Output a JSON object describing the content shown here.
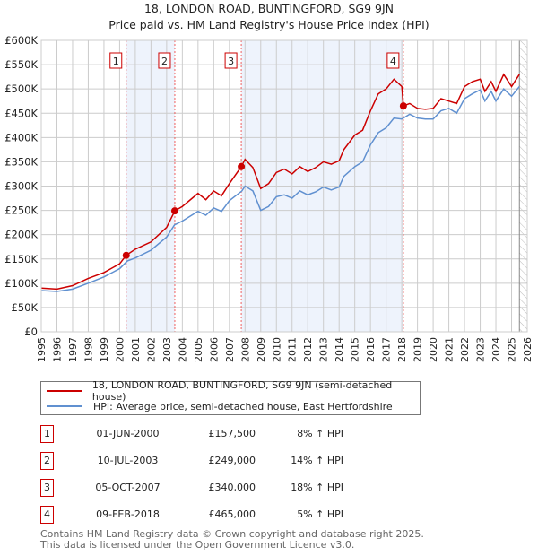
{
  "chart_data": {
    "type": "line",
    "title": "18, LONDON ROAD, BUNTINGFORD, SG9 9JN",
    "subtitle": "Price paid vs. HM Land Registry's House Price Index (HPI)",
    "xlim": [
      1995,
      2026
    ],
    "ylim": [
      0,
      600000
    ],
    "x_ticks": [
      "1995",
      "1996",
      "1997",
      "1998",
      "1999",
      "2000",
      "2001",
      "2002",
      "2003",
      "2004",
      "2005",
      "2006",
      "2007",
      "2008",
      "2009",
      "2010",
      "2011",
      "2012",
      "2013",
      "2014",
      "2015",
      "2016",
      "2017",
      "2018",
      "2019",
      "2020",
      "2021",
      "2022",
      "2023",
      "2024",
      "2025",
      "2026"
    ],
    "y_ticks": [
      {
        "v": 0,
        "label": "£0"
      },
      {
        "v": 50000,
        "label": "£50K"
      },
      {
        "v": 100000,
        "label": "£100K"
      },
      {
        "v": 150000,
        "label": "£150K"
      },
      {
        "v": 200000,
        "label": "£200K"
      },
      {
        "v": 250000,
        "label": "£250K"
      },
      {
        "v": 300000,
        "label": "£300K"
      },
      {
        "v": 350000,
        "label": "£350K"
      },
      {
        "v": 400000,
        "label": "£400K"
      },
      {
        "v": 450000,
        "label": "£450K"
      },
      {
        "v": 500000,
        "label": "£500K"
      },
      {
        "v": 550000,
        "label": "£550K"
      },
      {
        "v": 600000,
        "label": "£600K"
      }
    ],
    "grid": true,
    "series": [
      {
        "name": "18, LONDON ROAD, BUNTINGFORD, SG9 9JN (semi-detached house)",
        "color": "#cc0000",
        "x": [
          1995,
          1996,
          1997,
          1998,
          1999,
          2000,
          2000.42,
          2001,
          2002,
          2003,
          2003.52,
          2004,
          2005,
          2005.5,
          2006,
          2006.5,
          2007,
          2007.76,
          2008,
          2008.5,
          2009,
          2009.5,
          2010,
          2010.5,
          2011,
          2011.5,
          2012,
          2012.5,
          2013,
          2013.5,
          2014,
          2014.3,
          2015,
          2015.5,
          2016,
          2016.5,
          2017,
          2017.5,
          2018,
          2018.1,
          2018.5,
          2019,
          2019.5,
          2020,
          2020.5,
          2021,
          2021.5,
          2022,
          2022.5,
          2023,
          2023.3,
          2023.7,
          2024,
          2024.5,
          2025,
          2025.5
        ],
        "y": [
          90000,
          88000,
          95000,
          110000,
          122000,
          140000,
          157500,
          170000,
          185000,
          215000,
          249000,
          258000,
          285000,
          272000,
          290000,
          280000,
          305000,
          340000,
          355000,
          338000,
          295000,
          305000,
          328000,
          335000,
          325000,
          340000,
          330000,
          338000,
          350000,
          345000,
          352000,
          375000,
          405000,
          415000,
          455000,
          490000,
          500000,
          520000,
          505000,
          465000,
          470000,
          460000,
          458000,
          460000,
          480000,
          475000,
          470000,
          505000,
          515000,
          520000,
          495000,
          515000,
          495000,
          530000,
          505000,
          530000
        ]
      },
      {
        "name": "HPI: Average price, semi-detached house, East Hertfordshire",
        "color": "#6090d0",
        "x": [
          1995,
          1996,
          1997,
          1998,
          1999,
          2000,
          2000.5,
          2001,
          2002,
          2003,
          2003.5,
          2004,
          2005,
          2005.5,
          2006,
          2006.5,
          2007,
          2007.8,
          2008,
          2008.5,
          2009,
          2009.5,
          2010,
          2010.5,
          2011,
          2011.5,
          2012,
          2012.5,
          2013,
          2013.5,
          2014,
          2014.3,
          2015,
          2015.5,
          2016,
          2016.5,
          2017,
          2017.5,
          2018,
          2018.5,
          2019,
          2019.5,
          2020,
          2020.5,
          2021,
          2021.5,
          2022,
          2022.5,
          2023,
          2023.3,
          2023.7,
          2024,
          2024.5,
          2025,
          2025.5
        ],
        "y": [
          85000,
          83000,
          88000,
          100000,
          113000,
          130000,
          146000,
          152000,
          168000,
          195000,
          220000,
          228000,
          248000,
          240000,
          255000,
          248000,
          270000,
          290000,
          300000,
          290000,
          250000,
          258000,
          278000,
          282000,
          275000,
          290000,
          282000,
          288000,
          298000,
          292000,
          298000,
          320000,
          340000,
          350000,
          385000,
          410000,
          420000,
          440000,
          438000,
          448000,
          440000,
          438000,
          438000,
          455000,
          460000,
          450000,
          480000,
          490000,
          498000,
          475000,
          495000,
          475000,
          500000,
          485000,
          505000
        ]
      }
    ],
    "sales": [
      {
        "n": "1",
        "x": 2000.42,
        "y": 157500,
        "date": "01-JUN-2000",
        "price": "£157,500",
        "hpi": "8% ↑ HPI"
      },
      {
        "n": "2",
        "x": 2003.52,
        "y": 249000,
        "date": "10-JUL-2003",
        "price": "£249,000",
        "hpi": "14% ↑ HPI"
      },
      {
        "n": "3",
        "x": 2007.76,
        "y": 340000,
        "date": "05-OCT-2007",
        "price": "£340,000",
        "hpi": "18% ↑ HPI"
      },
      {
        "n": "4",
        "x": 2018.1,
        "y": 465000,
        "date": "09-FEB-2018",
        "price": "£465,000",
        "hpi": "5% ↑ HPI"
      }
    ],
    "shaded": [
      [
        2000.42,
        2003.52
      ],
      [
        2007.76,
        2018.1
      ]
    ],
    "hatched_from": 2025.5
  },
  "footer": {
    "line1": "Contains HM Land Registry data © Crown copyright and database right 2025.",
    "line2": "This data is licensed under the Open Government Licence v3.0."
  }
}
